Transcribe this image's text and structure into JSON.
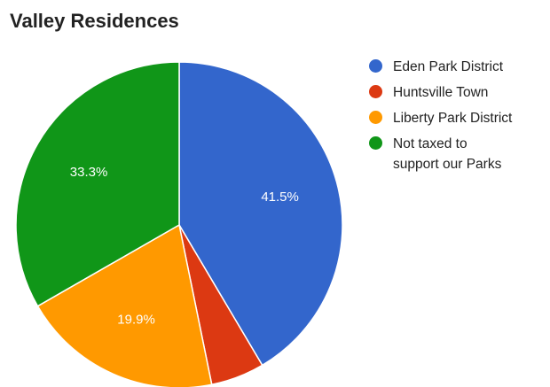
{
  "chart_data": {
    "type": "pie",
    "title": "Valley Residences",
    "categories": [
      "Eden Park District",
      "Huntsville Town",
      "Liberty Park District",
      "Not taxed to\nsupport our Parks"
    ],
    "values": [
      41.5,
      5.3,
      19.9,
      33.3
    ],
    "data_labels": [
      "41.5%",
      "",
      "19.9%",
      "33.3%"
    ],
    "colors": [
      "#3366cc",
      "#dc3912",
      "#ff9900",
      "#109618"
    ],
    "legend_position": "right"
  }
}
